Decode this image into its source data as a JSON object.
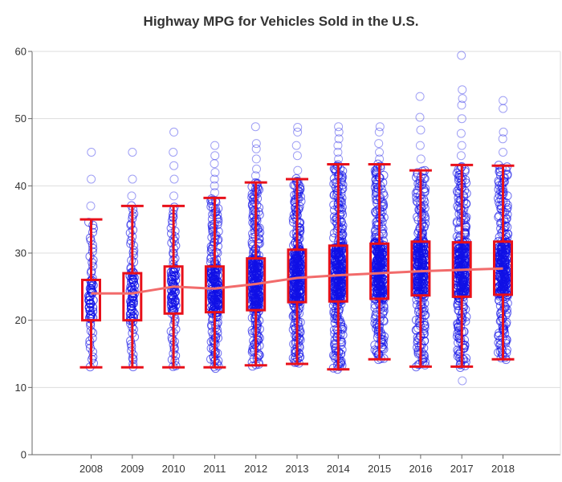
{
  "chart_data": {
    "type": "box",
    "title": "Highway MPG for Vehicles Sold in the U.S.",
    "xlabel": "",
    "ylabel": "",
    "ylim": [
      0,
      60
    ],
    "yticks": [
      0,
      10,
      20,
      30,
      40,
      50,
      60
    ],
    "grid": true,
    "categories": [
      "2008",
      "2009",
      "2010",
      "2011",
      "2012",
      "2013",
      "2014",
      "2015",
      "2016",
      "2017",
      "2018"
    ],
    "box_stats": [
      {
        "year": "2008",
        "whisker_low": 13,
        "q1": 20,
        "median": 24,
        "q3": 26,
        "whisker_high": 35,
        "outliers": [
          37,
          41,
          45
        ]
      },
      {
        "year": "2009",
        "whisker_low": 13,
        "q1": 20,
        "median": 24,
        "q3": 27,
        "whisker_high": 37,
        "outliers": [
          38.5,
          41,
          45
        ]
      },
      {
        "year": "2010",
        "whisker_low": 13,
        "q1": 21,
        "median": 25,
        "q3": 28,
        "whisker_high": 37,
        "outliers": [
          38.5,
          41,
          43,
          45,
          48
        ]
      },
      {
        "year": "2011",
        "whisker_low": 13,
        "q1": 21.2,
        "median": 24.7,
        "q3": 28,
        "whisker_high": 38.2,
        "outliers": [
          39,
          40,
          41,
          42,
          43.3,
          44.5,
          46
        ]
      },
      {
        "year": "2012",
        "whisker_low": 13.3,
        "q1": 21.5,
        "median": 25.4,
        "q3": 29.2,
        "whisker_high": 40.5,
        "outliers": [
          41.5,
          42.5,
          44,
          45.5,
          46.3,
          48.8
        ]
      },
      {
        "year": "2013",
        "whisker_low": 13.5,
        "q1": 22.7,
        "median": 26.3,
        "q3": 30.5,
        "whisker_high": 41,
        "outliers": [
          42.3,
          44.5,
          46,
          48,
          48.7
        ]
      },
      {
        "year": "2014",
        "whisker_low": 12.7,
        "q1": 22.8,
        "median": 26.7,
        "q3": 31.1,
        "whisker_high": 43.2,
        "outliers": [
          44,
          45,
          46,
          47,
          48,
          48.8
        ]
      },
      {
        "year": "2015",
        "whisker_low": 14.2,
        "q1": 23.2,
        "median": 27,
        "q3": 31.4,
        "whisker_high": 43.2,
        "outliers": [
          44,
          45,
          46.3,
          48,
          48.8
        ]
      },
      {
        "year": "2016",
        "whisker_low": 13.1,
        "q1": 23.7,
        "median": 27.3,
        "q3": 31.7,
        "whisker_high": 42.3,
        "outliers": [
          44,
          46,
          48.3,
          50.2,
          53.3
        ]
      },
      {
        "year": "2017",
        "whisker_low": 13.1,
        "q1": 23.5,
        "median": 27.5,
        "q3": 31.6,
        "whisker_high": 43.1,
        "outliers": [
          11,
          44.5,
          46,
          47.8,
          50,
          52,
          53,
          54.3,
          59.4
        ]
      },
      {
        "year": "2018",
        "whisker_low": 14.2,
        "q1": 23.8,
        "median": 27.7,
        "q3": 31.7,
        "whisker_high": 43,
        "outliers": [
          45,
          47,
          48,
          51.5,
          52.7
        ]
      }
    ],
    "colors": {
      "box": "#e8101a",
      "points": "#1010e6",
      "median_line": "#f26b6b",
      "grid": "#dddddd",
      "axis": "#666666"
    }
  }
}
